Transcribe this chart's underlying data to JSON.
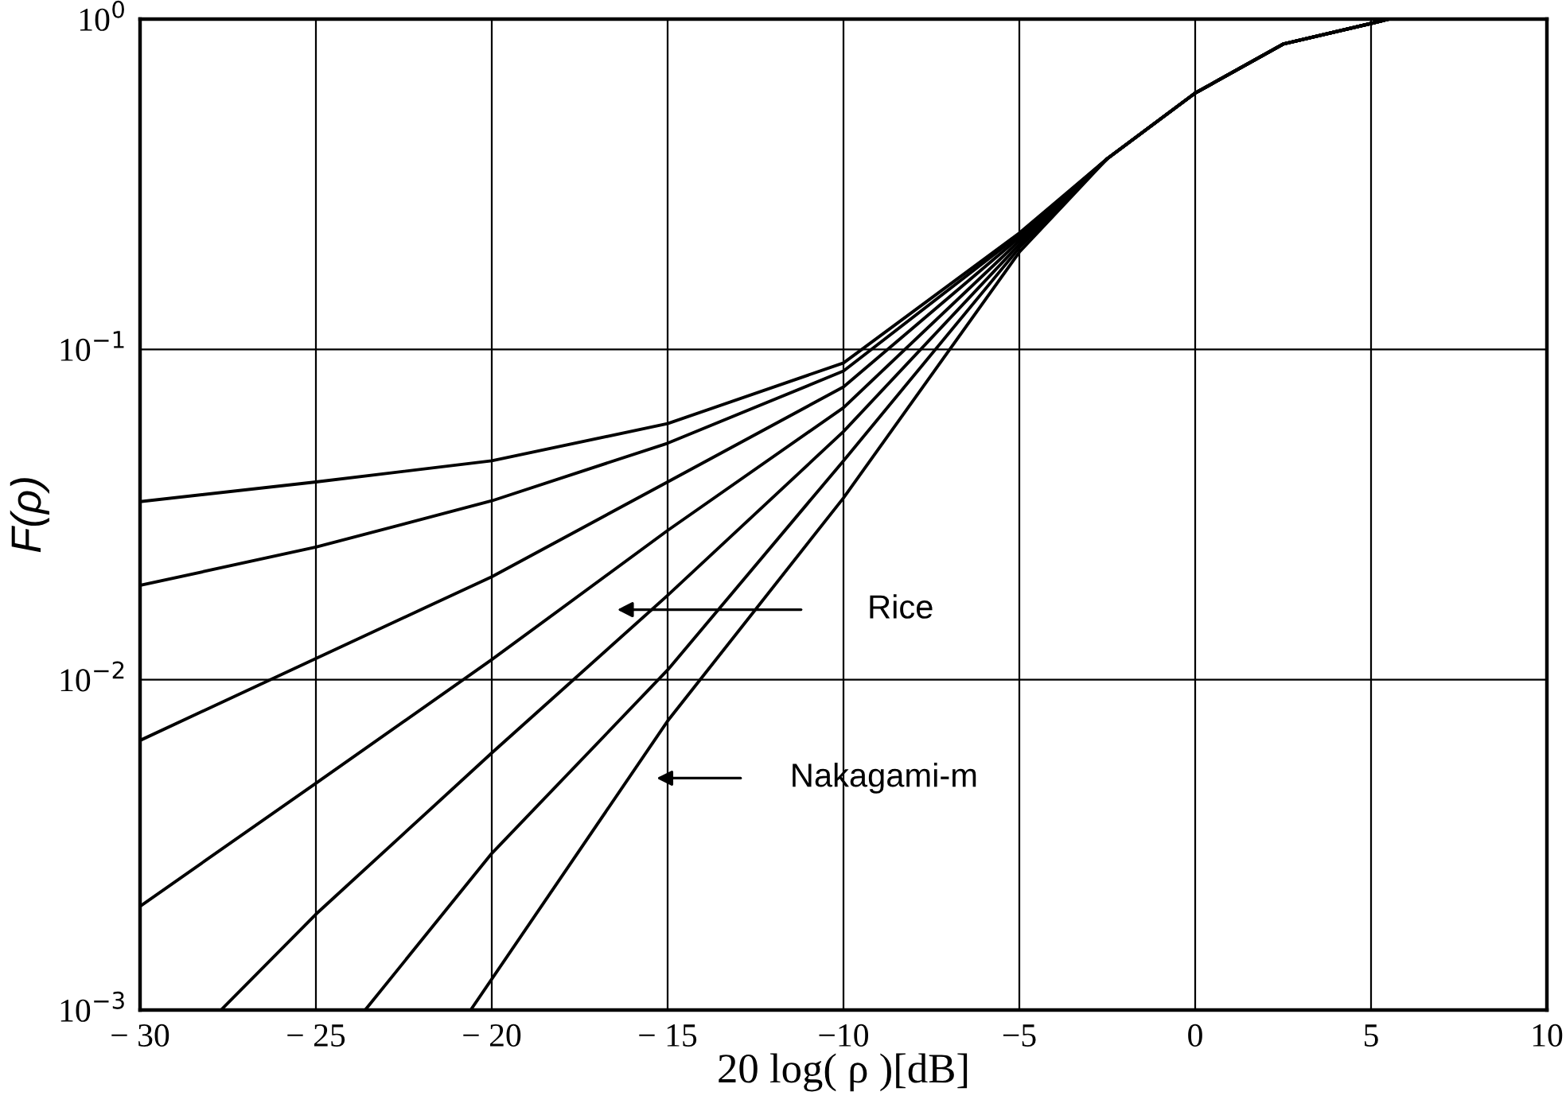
{
  "chart_data": {
    "type": "line",
    "xlabel": "20 log( ρ )[dB]",
    "ylabel": "F(ρ)",
    "log": "y",
    "grid": true,
    "marker": "none",
    "line_style": "solid",
    "xlim": [
      -30,
      10
    ],
    "ylim": [
      0.001,
      1
    ],
    "xticks": [
      {
        "value": -30,
        "label": "− 30"
      },
      {
        "value": -25,
        "label": "− 25"
      },
      {
        "value": -20,
        "label": "− 20"
      },
      {
        "value": -15,
        "label": "− 15"
      },
      {
        "value": -10,
        "label": "−10"
      },
      {
        "value": -5,
        "label": "−5"
      },
      0,
      5,
      10
    ],
    "yticks": [
      {
        "value": 0.001,
        "label": "10$^{−3}$"
      },
      {
        "value": 0.01,
        "label": "10$^{−2}$"
      },
      {
        "value": 0.1,
        "label": "10$^{−1}$"
      },
      {
        "value": 1,
        "label": "10$^{0}$"
      }
    ],
    "series": [
      {
        "color": "#000000",
        "x": [
          -30,
          -25,
          -20,
          -15,
          -10,
          -5,
          -2.5,
          0,
          2.5,
          5,
          5.5,
          10
        ],
        "values": [
          0.0346,
          0.0397,
          0.046,
          0.0596,
          0.091,
          0.225,
          0.378,
          0.597,
          0.84,
          0.97,
          1.0,
          1.0
        ]
      },
      {
        "color": "#000000",
        "x": [
          -30,
          -25,
          -20,
          -15,
          -10,
          -5,
          -2.5,
          0,
          2.5,
          5,
          5.5,
          10
        ],
        "values": [
          0.0193,
          0.0252,
          0.0348,
          0.052,
          0.086,
          0.222,
          0.378,
          0.597,
          0.84,
          0.97,
          1.0,
          1.0
        ]
      },
      {
        "color": "#000000",
        "x": [
          -30,
          -25,
          -20,
          -15,
          -10,
          -5,
          -2.5,
          0,
          2.5,
          5,
          5.5,
          10
        ],
        "values": [
          0.00655,
          0.0116,
          0.0205,
          0.0397,
          0.077,
          0.218,
          0.378,
          0.597,
          0.84,
          0.97,
          1.0,
          1.0
        ]
      },
      {
        "color": "#000000",
        "x": [
          -30,
          -25,
          -20,
          -15,
          -10,
          -5,
          -2.5,
          0,
          2.5,
          5,
          5.5,
          10
        ],
        "values": [
          0.00206,
          0.00486,
          0.0115,
          0.0283,
          0.0666,
          0.213,
          0.378,
          0.597,
          0.84,
          0.97,
          1.0,
          1.0
        ]
      },
      {
        "color": "#000000",
        "x": [
          -27.7,
          -25,
          -20,
          -15,
          -10,
          -5,
          -2.5,
          0,
          2.5,
          5,
          5.5,
          10
        ],
        "values": [
          0.001,
          0.00195,
          0.006,
          0.018,
          0.0564,
          0.208,
          0.378,
          0.597,
          0.84,
          0.97,
          1.0,
          1.0
        ]
      },
      {
        "color": "#000000",
        "x": [
          -23.6,
          -20,
          -15,
          -10,
          -5,
          -2.5,
          0,
          2.5,
          5,
          5.5,
          10
        ],
        "values": [
          0.001,
          0.00298,
          0.0107,
          0.046,
          0.203,
          0.378,
          0.597,
          0.84,
          0.97,
          1.0,
          1.0
        ]
      },
      {
        "color": "#000000",
        "x": [
          -20.6,
          -15,
          -10,
          -5,
          -2.5,
          0,
          2.5,
          5,
          5.5,
          10
        ],
        "values": [
          0.001,
          0.0075,
          0.0355,
          0.197,
          0.378,
          0.597,
          0.84,
          0.97,
          1.0,
          1.0
        ]
      }
    ],
    "annotations": [
      "Rice",
      "Nakagami-m"
    ]
  }
}
